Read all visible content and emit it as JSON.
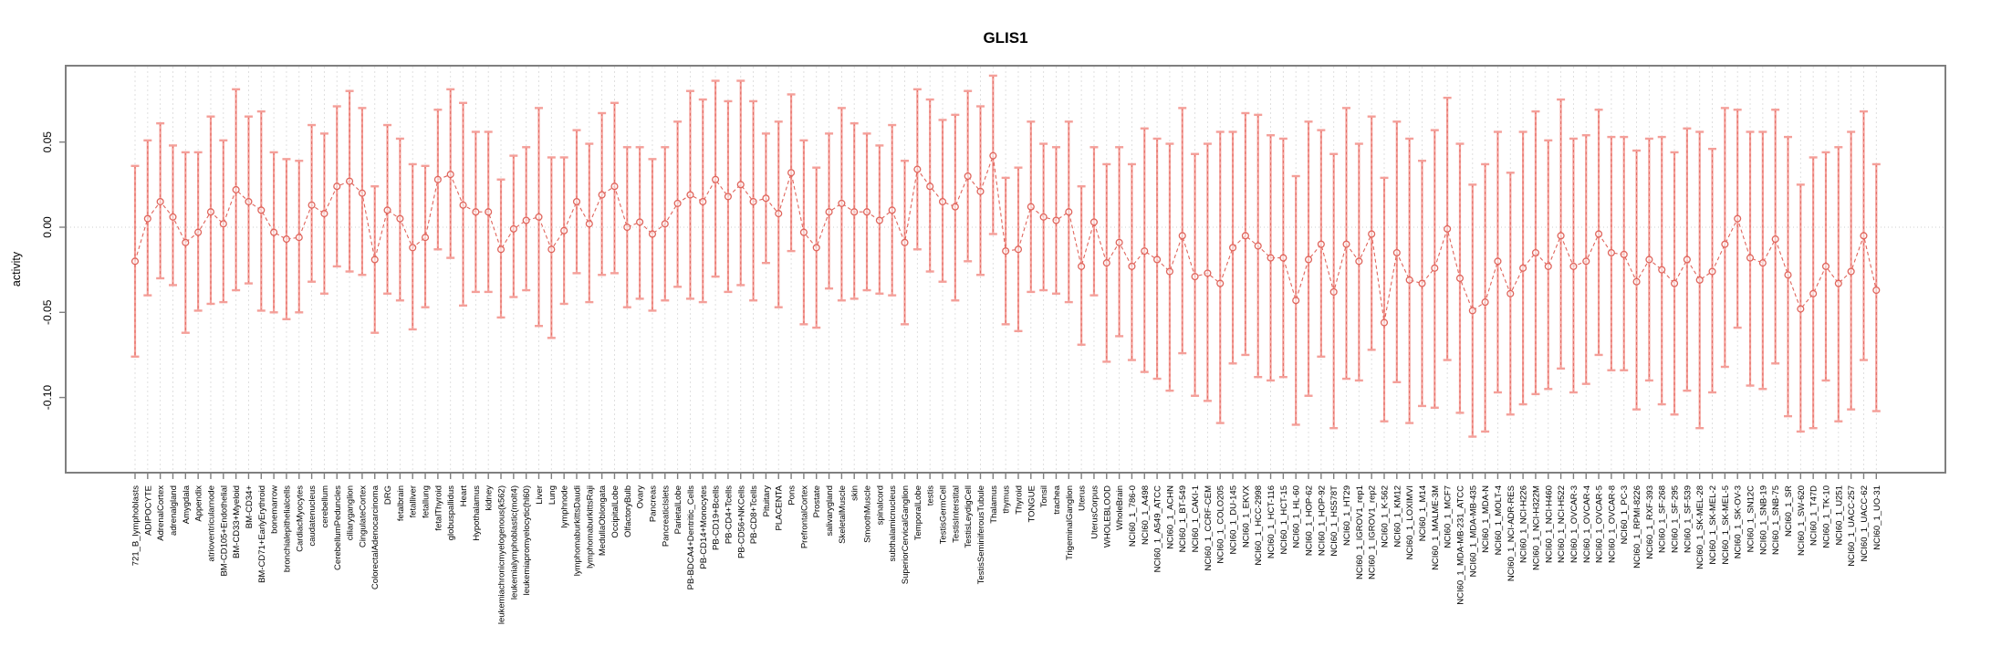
{
  "title": "GLIS1",
  "chart_data": {
    "type": "line",
    "title": "GLIS1",
    "xlabel": "",
    "ylabel": "activity",
    "ylim": [
      -0.144,
      0.095
    ],
    "grid": "vertical-dashed-per-category, dotted-zero-line",
    "legend": "none",
    "yticks": [
      0.05,
      0.0,
      -0.05,
      -0.1
    ],
    "ytick_labels": [
      "0.05",
      "0.00",
      "-0.05",
      "-0.10"
    ],
    "marker": "open-circle",
    "line_style": "dashed",
    "categories": [
      "721_B_lymphoblasts",
      "ADIPOCYTE",
      "AdrenalCortex",
      "adrenalgland",
      "Amygdala",
      "Appendix",
      "atrioventricularnode",
      "BM-CD105+Endothelial",
      "BM-CD33+Myeloid",
      "BM-CD34+",
      "BM-CD71+EarlyErythroid",
      "bonemarrow",
      "bronchialepithelialcells",
      "CardiacMyocytes",
      "caudatenucleus",
      "cerebellum",
      "CerebellumPeduncles",
      "ciliaryganglion",
      "CingulateCortex",
      "ColorectalAdenocarcinoma",
      "DRG",
      "fetalbrain",
      "fetalliver",
      "fetallung",
      "fetalThyroid",
      "globuspallidus",
      "Heart",
      "Hypothalamus",
      "kidney",
      "leukemiachronicmyelogenous(k562)",
      "leukemialymphoblastic(molt4)",
      "leukemiapromyelocytic(hl60)",
      "Liver",
      "Lung",
      "lymphnode",
      "lymphomaburkittsDaudi",
      "lymphomaburkittsRaji",
      "MedullaOblongata",
      "OccipitalLobe",
      "OlfactoryBulb",
      "Ovary",
      "Pancreas",
      "PancreaticIslets",
      "ParietalLobe",
      "PB-BDCA4+Dentritic_Cells",
      "PB-CD14+Monocytes",
      "PB-CD19+Bcells",
      "PB-CD4+Tcells",
      "PB-CD56+NKCells",
      "PB-CD8+Tcells",
      "Pituitary",
      "PLACENTA",
      "Pons",
      "PrefrontalCortex",
      "Prostate",
      "salivarygland",
      "SkeletalMuscle",
      "skin",
      "SmoothMuscle",
      "spinalcord",
      "subthalamicnucleus",
      "SuperiorCervicalGanglion",
      "TemporalLobe",
      "testis",
      "TestisGermCell",
      "TestisInterstital",
      "TestisLeydigCell",
      "TestisSeminiferousTubule",
      "Thalamus",
      "thymus",
      "Thyroid",
      "TONGUE",
      "Tonsil",
      "trachea",
      "TrigeminalGanglion",
      "Uterus",
      "UterusCorpus",
      "WHOLEBLOOD",
      "WholeBrain",
      "NCI60_1_786-0",
      "NCI60_1_A498",
      "NCI60_1_A549_ATCC",
      "NCI60_1_ACHN",
      "NCI60_1_BT-549",
      "NCI60_1_CAKI-1",
      "NCI60_1_CCRF-CEM",
      "NCI60_1_COLO205",
      "NCI60_1_DU-145",
      "NCI60_1_EKVX",
      "NCI60_1_HCC-2998",
      "NCI60_1_HCT-116",
      "NCI60_1_HCT-15",
      "NCI60_1_HL-60",
      "NCI60_1_HOP-62",
      "NCI60_1_HOP-92",
      "NCI60_1_HS578T",
      "NCI60_1_HT29",
      "NCI60_1_IGROV1_rep1",
      "NCI60_1_IGROV1_rep2",
      "NCI60_1_K-562",
      "NCI60_1_KM12",
      "NCI60_1_LOXIMVI",
      "NCI60_1_M14",
      "NCI60_1_MALME-3M",
      "NCI60_1_MCF7",
      "NCI60_1_MDA-MB-231_ATCC",
      "NCI60_1_MDA-MB-435",
      "NCI60_1_MDA-N",
      "NCI60_1_MOLT-4",
      "NCI60_1_NCI-ADR-RES",
      "NCI60_1_NCI-H226",
      "NCI60_1_NCI-H322M",
      "NCI60_1_NCI-H460",
      "NCI60_1_NCI-H522",
      "NCI60_1_OVCAR-3",
      "NCI60_1_OVCAR-4",
      "NCI60_1_OVCAR-5",
      "NCI60_1_OVCAR-8",
      "NCI60_1_PC-3",
      "NCI60_1_RPMI-8226",
      "NCI60_1_RXF-393",
      "NCI60_1_SF-268",
      "NCI60_1_SF-295",
      "NCI60_1_SF-539",
      "NCI60_1_SK-MEL-28",
      "NCI60_1_SK-MEL-2",
      "NCI60_1_SK-MEL-5",
      "NCI60_1_SK-OV-3",
      "NCI60_1_SN12C",
      "NCI60_1_SNB-19",
      "NCI60_1_SNB-75",
      "NCI60_1_SR",
      "NCI60_1_SW-620",
      "NCI60_1_T47D",
      "NCI60_1_TK-10",
      "NCI60_1_U251",
      "NCI60_1_UACC-257",
      "NCI60_1_UACC-62",
      "NCI60_1_UO-31"
    ],
    "series": [
      {
        "name": "activity",
        "values": [
          -0.02,
          0.005,
          0.015,
          0.006,
          -0.009,
          -0.003,
          0.009,
          0.002,
          0.022,
          0.015,
          0.01,
          -0.003,
          -0.007,
          -0.006,
          0.013,
          0.008,
          0.024,
          0.027,
          0.02,
          -0.019,
          0.01,
          0.005,
          -0.012,
          -0.006,
          0.028,
          0.031,
          0.013,
          0.009,
          0.009,
          -0.013,
          -0.001,
          0.004,
          0.006,
          -0.013,
          -0.002,
          0.015,
          0.002,
          0.019,
          0.024,
          0.0,
          0.003,
          -0.004,
          0.002,
          0.014,
          0.019,
          0.015,
          0.028,
          0.018,
          0.025,
          0.015,
          0.017,
          0.008,
          0.032,
          -0.003,
          -0.012,
          0.009,
          0.014,
          0.009,
          0.009,
          0.004,
          0.01,
          -0.009,
          0.034,
          0.024,
          0.015,
          0.012,
          0.03,
          0.021,
          0.042,
          -0.014,
          -0.013,
          0.012,
          0.006,
          0.004,
          0.009,
          -0.023,
          0.003,
          -0.021,
          -0.009,
          -0.023,
          -0.014,
          -0.019,
          -0.026,
          -0.005,
          -0.029,
          -0.027,
          -0.033,
          -0.012,
          -0.005,
          -0.011,
          -0.018,
          -0.018,
          -0.043,
          -0.019,
          -0.01,
          -0.038,
          -0.01,
          -0.02,
          -0.004,
          -0.056,
          -0.015,
          -0.031,
          -0.033,
          -0.024,
          -0.001,
          -0.03,
          -0.049,
          -0.044,
          -0.02,
          -0.039,
          -0.024,
          -0.015,
          -0.023,
          -0.005,
          -0.023,
          -0.02,
          -0.004,
          -0.015,
          -0.016,
          -0.032,
          -0.019,
          -0.025,
          -0.033,
          -0.019,
          -0.031,
          -0.026,
          -0.01,
          0.005,
          -0.018,
          -0.021,
          -0.007,
          -0.028,
          -0.048,
          -0.039,
          -0.023,
          -0.033,
          -0.026,
          -0.005,
          -0.037
        ],
        "upper": [
          0.036,
          0.051,
          0.061,
          0.048,
          0.044,
          0.044,
          0.065,
          0.051,
          0.081,
          0.065,
          0.068,
          0.044,
          0.04,
          0.039,
          0.06,
          0.055,
          0.071,
          0.08,
          0.07,
          0.024,
          0.06,
          0.052,
          0.037,
          0.036,
          0.069,
          0.081,
          0.073,
          0.056,
          0.056,
          0.028,
          0.042,
          0.047,
          0.07,
          0.041,
          0.041,
          0.057,
          0.049,
          0.067,
          0.073,
          0.047,
          0.047,
          0.04,
          0.047,
          0.062,
          0.08,
          0.075,
          0.086,
          0.074,
          0.086,
          0.074,
          0.055,
          0.062,
          0.078,
          0.051,
          0.035,
          0.055,
          0.07,
          0.061,
          0.055,
          0.048,
          0.06,
          0.039,
          0.081,
          0.075,
          0.063,
          0.066,
          0.08,
          0.071,
          0.089,
          0.029,
          0.035,
          0.062,
          0.049,
          0.047,
          0.062,
          0.024,
          0.047,
          0.037,
          0.047,
          0.037,
          0.058,
          0.052,
          0.049,
          0.07,
          0.043,
          0.049,
          0.056,
          0.056,
          0.067,
          0.066,
          0.054,
          0.052,
          0.03,
          0.062,
          0.057,
          0.043,
          0.07,
          0.049,
          0.065,
          0.029,
          0.062,
          0.052,
          0.039,
          0.057,
          0.076,
          0.049,
          0.025,
          0.037,
          0.056,
          0.032,
          0.056,
          0.068,
          0.051,
          0.075,
          0.052,
          0.054,
          0.069,
          0.053,
          0.053,
          0.045,
          0.052,
          0.053,
          0.044,
          0.058,
          0.056,
          0.046,
          0.07,
          0.069,
          0.056,
          0.056,
          0.069,
          0.053,
          0.025,
          0.041,
          0.044,
          0.047,
          0.056,
          0.068,
          0.037
        ],
        "lower": [
          -0.076,
          -0.04,
          -0.03,
          -0.034,
          -0.062,
          -0.049,
          -0.045,
          -0.044,
          -0.037,
          -0.033,
          -0.049,
          -0.05,
          -0.054,
          -0.05,
          -0.032,
          -0.039,
          -0.023,
          -0.026,
          -0.028,
          -0.062,
          -0.039,
          -0.043,
          -0.06,
          -0.047,
          -0.013,
          -0.018,
          -0.046,
          -0.038,
          -0.038,
          -0.053,
          -0.041,
          -0.037,
          -0.058,
          -0.065,
          -0.045,
          -0.027,
          -0.044,
          -0.028,
          -0.027,
          -0.047,
          -0.042,
          -0.049,
          -0.043,
          -0.035,
          -0.042,
          -0.044,
          -0.029,
          -0.038,
          -0.034,
          -0.043,
          -0.021,
          -0.047,
          -0.014,
          -0.057,
          -0.059,
          -0.036,
          -0.043,
          -0.042,
          -0.037,
          -0.039,
          -0.04,
          -0.057,
          -0.013,
          -0.026,
          -0.032,
          -0.043,
          -0.02,
          -0.028,
          -0.004,
          -0.057,
          -0.061,
          -0.038,
          -0.037,
          -0.039,
          -0.044,
          -0.069,
          -0.04,
          -0.079,
          -0.064,
          -0.078,
          -0.085,
          -0.089,
          -0.096,
          -0.074,
          -0.099,
          -0.102,
          -0.115,
          -0.08,
          -0.075,
          -0.088,
          -0.09,
          -0.088,
          -0.116,
          -0.099,
          -0.076,
          -0.118,
          -0.089,
          -0.09,
          -0.072,
          -0.114,
          -0.091,
          -0.115,
          -0.105,
          -0.106,
          -0.078,
          -0.109,
          -0.123,
          -0.12,
          -0.097,
          -0.11,
          -0.104,
          -0.098,
          -0.095,
          -0.083,
          -0.097,
          -0.092,
          -0.075,
          -0.084,
          -0.084,
          -0.107,
          -0.09,
          -0.104,
          -0.11,
          -0.096,
          -0.118,
          -0.097,
          -0.082,
          -0.059,
          -0.093,
          -0.095,
          -0.08,
          -0.111,
          -0.12,
          -0.118,
          -0.09,
          -0.114,
          -0.107,
          -0.078,
          -0.108
        ]
      }
    ],
    "colors": {
      "whisker": "#f49f99",
      "point": "#e0655c",
      "grid": "#dcdcdc",
      "zero_line": "#cfcfcf",
      "axis_box": "#7f7f7f",
      "text": "#000000"
    }
  }
}
